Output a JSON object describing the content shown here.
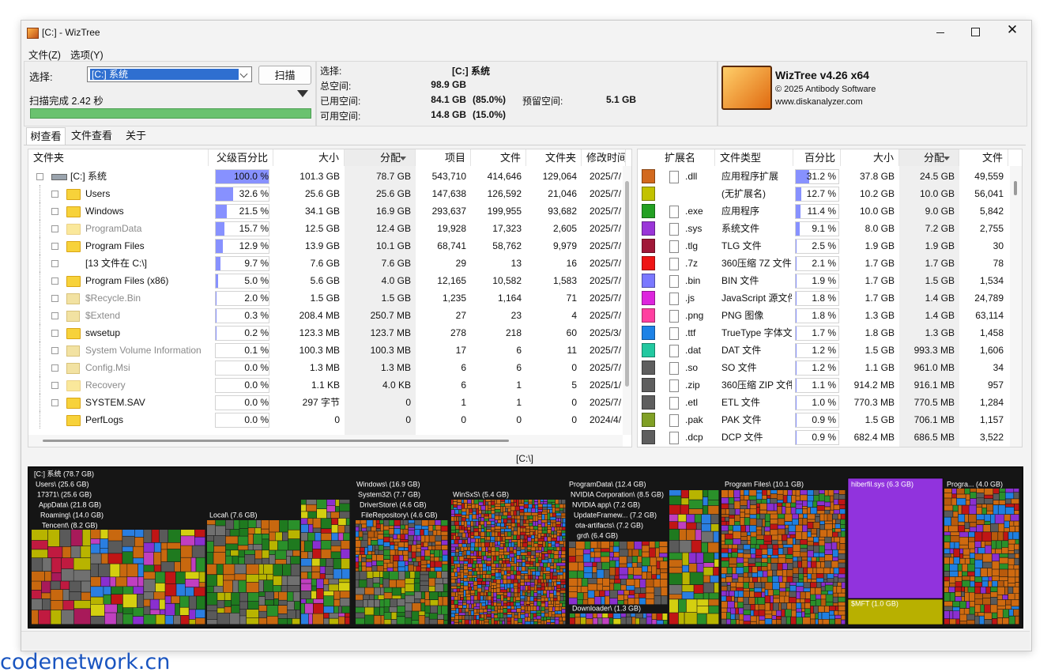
{
  "window": {
    "title": "[C:]  - WizTree"
  },
  "menu": [
    "文件(Z)",
    "选项(Y)"
  ],
  "toolbar": {
    "select_label": "选择:",
    "drive": "[C:] 系统",
    "scan_button": "扫描",
    "status": "扫描完成 2.42 秒"
  },
  "info": {
    "select_label": "选择:",
    "select_value": "[C:] 系统",
    "total_label": "总空间:",
    "total_value": "98.9 GB",
    "used_label": "已用空间:",
    "used_value": "84.1 GB",
    "used_pct": "(85.0%)",
    "reserved_label": "预留空间:",
    "reserved_value": "5.1 GB",
    "free_label": "可用空间:",
    "free_value": "14.8 GB",
    "free_pct": "(15.0%)"
  },
  "logo": {
    "name": "WizTree v4.26 x64",
    "copyright": "© 2025 Antibody Software",
    "url": "www.diskanalyzer.com"
  },
  "tabs": [
    "树查看",
    "文件查看",
    "关于"
  ],
  "tree": {
    "columns": [
      "文件夹",
      "父级百分比",
      "大小",
      "分配",
      "项目",
      "文件",
      "文件夹",
      "修改时间"
    ],
    "rows": [
      {
        "icon": "drive",
        "name": "[C:] 系统",
        "pct": "100.0 %",
        "size": "101.3 GB",
        "alloc": "78.7 GB",
        "items": "543,710",
        "files": "414,646",
        "folders": "129,064",
        "modified": "2025/7/"
      },
      {
        "icon": "folder",
        "name": "Users",
        "pct": "32.6 %",
        "size": "25.6 GB",
        "alloc": "25.6 GB",
        "items": "147,638",
        "files": "126,592",
        "folders": "21,046",
        "modified": "2025/7/"
      },
      {
        "icon": "folder",
        "name": "Windows",
        "pct": "21.5 %",
        "size": "34.1 GB",
        "alloc": "16.9 GB",
        "items": "293,637",
        "files": "199,955",
        "folders": "93,682",
        "modified": "2025/7/"
      },
      {
        "icon": "folder",
        "hidden": true,
        "name": "ProgramData",
        "pct": "15.7 %",
        "size": "12.5 GB",
        "alloc": "12.4 GB",
        "items": "19,928",
        "files": "17,323",
        "folders": "2,605",
        "modified": "2025/7/"
      },
      {
        "icon": "folder",
        "name": "Program Files",
        "pct": "12.9 %",
        "size": "13.9 GB",
        "alloc": "10.1 GB",
        "items": "68,741",
        "files": "58,762",
        "folders": "9,979",
        "modified": "2025/7/"
      },
      {
        "icon": "none",
        "name": "[13 文件在 C:\\]",
        "pct": "9.7 %",
        "size": "7.6 GB",
        "alloc": "7.6 GB",
        "items": "29",
        "files": "13",
        "folders": "16",
        "modified": "2025/7/"
      },
      {
        "icon": "folder",
        "name": "Program Files (x86)",
        "pct": "5.0 %",
        "size": "5.6 GB",
        "alloc": "4.0 GB",
        "items": "12,165",
        "files": "10,582",
        "folders": "1,583",
        "modified": "2025/7/"
      },
      {
        "icon": "gear",
        "hidden": true,
        "name": "$Recycle.Bin",
        "pct": "2.0 %",
        "size": "1.5 GB",
        "alloc": "1.5 GB",
        "items": "1,235",
        "files": "1,164",
        "folders": "71",
        "modified": "2025/7/"
      },
      {
        "icon": "gear",
        "hidden": true,
        "name": "$Extend",
        "pct": "0.3 %",
        "size": "208.4 MB",
        "alloc": "250.7 MB",
        "items": "27",
        "files": "23",
        "folders": "4",
        "modified": "2025/7/"
      },
      {
        "icon": "folder",
        "name": "swsetup",
        "pct": "0.2 %",
        "size": "123.3 MB",
        "alloc": "123.7 MB",
        "items": "278",
        "files": "218",
        "folders": "60",
        "modified": "2025/3/"
      },
      {
        "icon": "gear",
        "hidden": true,
        "name": "System Volume Information",
        "pct": "0.1 %",
        "size": "100.3 MB",
        "alloc": "100.3 MB",
        "items": "17",
        "files": "6",
        "folders": "11",
        "modified": "2025/7/"
      },
      {
        "icon": "gear",
        "hidden": true,
        "name": "Config.Msi",
        "pct": "0.0 %",
        "size": "1.3 MB",
        "alloc": "1.3 MB",
        "items": "6",
        "files": "6",
        "folders": "0",
        "modified": "2025/7/"
      },
      {
        "icon": "folder",
        "hidden": true,
        "name": "Recovery",
        "pct": "0.0 %",
        "size": "1.1 KB",
        "alloc": "4.0 KB",
        "items": "6",
        "files": "1",
        "folders": "5",
        "modified": "2025/1/"
      },
      {
        "icon": "folder",
        "name": "SYSTEM.SAV",
        "pct": "0.0 %",
        "size": "297 字节",
        "alloc": "0",
        "items": "1",
        "files": "1",
        "folders": "0",
        "modified": "2025/7/"
      },
      {
        "icon": "leaf",
        "name": "PerfLogs",
        "pct": "0.0 %",
        "size": "0",
        "alloc": "0",
        "items": "0",
        "files": "0",
        "folders": "0",
        "modified": "2024/4/"
      }
    ]
  },
  "ext": {
    "columns": [
      "扩展名",
      "文件类型",
      "百分比",
      "大小",
      "分配",
      "文件"
    ],
    "rows": [
      {
        "color": "#d2691e",
        "ext": ".dll",
        "type": "应用程序扩展",
        "pct": "31.2 %",
        "size": "37.8 GB",
        "alloc": "24.5 GB",
        "files": "49,559"
      },
      {
        "color": "#c2c200",
        "type": "(无扩展名)",
        "pct": "12.7 %",
        "size": "10.2 GB",
        "alloc": "10.0 GB",
        "files": "56,041"
      },
      {
        "color": "#23a023",
        "ext": ".exe",
        "type": "应用程序",
        "pct": "11.4 %",
        "size": "10.0 GB",
        "alloc": "9.0 GB",
        "files": "5,842"
      },
      {
        "color": "#9a35d8",
        "ext": ".sys",
        "type": "系统文件",
        "pct": "9.1 %",
        "size": "8.0 GB",
        "alloc": "7.2 GB",
        "files": "2,755"
      },
      {
        "color": "#a01838",
        "ext": ".tlg",
        "type": "TLG 文件",
        "pct": "2.5 %",
        "size": "1.9 GB",
        "alloc": "1.9 GB",
        "files": "30"
      },
      {
        "color": "#ee1515",
        "ext": ".7z",
        "type": "360压缩 7Z 文件",
        "pct": "2.1 %",
        "size": "1.7 GB",
        "alloc": "1.7 GB",
        "files": "78"
      },
      {
        "color": "#7a78ff",
        "ext": ".bin",
        "type": "BIN 文件",
        "pct": "1.9 %",
        "size": "1.7 GB",
        "alloc": "1.5 GB",
        "files": "1,534"
      },
      {
        "color": "#dd25dd",
        "ext": ".js",
        "type": "JavaScript 源文件",
        "pct": "1.8 %",
        "size": "1.7 GB",
        "alloc": "1.4 GB",
        "files": "24,789"
      },
      {
        "color": "#ff3fa0",
        "ext": ".png",
        "type": "PNG 图像",
        "pct": "1.8 %",
        "size": "1.3 GB",
        "alloc": "1.4 GB",
        "files": "63,114"
      },
      {
        "color": "#1d82e6",
        "ext": ".ttf",
        "type": "TrueType 字体文件",
        "pct": "1.7 %",
        "size": "1.8 GB",
        "alloc": "1.3 GB",
        "files": "1,458"
      },
      {
        "color": "#22c8a0",
        "ext": ".dat",
        "type": "DAT 文件",
        "pct": "1.2 %",
        "size": "1.5 GB",
        "alloc": "993.3 MB",
        "files": "1,606"
      },
      {
        "color": "#5e5e5e",
        "ext": ".so",
        "type": "SO 文件",
        "pct": "1.2 %",
        "size": "1.1 GB",
        "alloc": "961.0 MB",
        "files": "34"
      },
      {
        "color": "#5e5e5e",
        "ext": ".zip",
        "type": "360压缩 ZIP 文件",
        "pct": "1.1 %",
        "size": "914.2 MB",
        "alloc": "916.1 MB",
        "files": "957"
      },
      {
        "color": "#5e5e5e",
        "ext": ".etl",
        "type": "ETL 文件",
        "pct": "1.0 %",
        "size": "770.3 MB",
        "alloc": "770.5 MB",
        "files": "1,284"
      },
      {
        "color": "#80a025",
        "ext": ".pak",
        "type": "PAK 文件",
        "pct": "0.9 %",
        "size": "1.5 GB",
        "alloc": "706.1 MB",
        "files": "1,157"
      },
      {
        "color": "#5e5e5e",
        "ext": ".dcp",
        "type": "DCP 文件",
        "pct": "0.9 %",
        "size": "682.4 MB",
        "alloc": "686.5 MB",
        "files": "3,522"
      }
    ]
  },
  "path_label": "[C:\\]",
  "treemap": {
    "labels": [
      "[C:] 系统  (78.7 GB)",
      "Users\\ (25.6 GB)",
      "17371\\ (25.6 GB)",
      "AppData\\ (21.8 GB)",
      "Roaming\\ (14.0 GB)",
      "Tencent\\ (8.2 GB)",
      "Local\\ (7.6 GB)",
      "Windows\\ (16.9 GB)",
      "System32\\ (7.7 GB)",
      "DriverStore\\ (4.6 GB)",
      "FileRepository\\ (4.6 GB)",
      "WinSxS\\ (5.4 GB)",
      "ProgramData\\ (12.4 GB)",
      "NVIDIA Corporation\\ (8.5 GB)",
      "NVIDIA app\\ (7.2 GB)",
      "UpdateFramew... (7.2 GB)",
      "ota-artifacts\\ (7.2 GB)",
      "grd\\ (6.4 GB)",
      "Downloader\\ (1.3 GB)",
      "Program Files\\ (10.1 GB)",
      "hiberfil.sys (6.3 GB)",
      "$MFT (1.0 GB)",
      "Progra... (4.0 GB)"
    ]
  },
  "watermark": "codenetwork.cn"
}
